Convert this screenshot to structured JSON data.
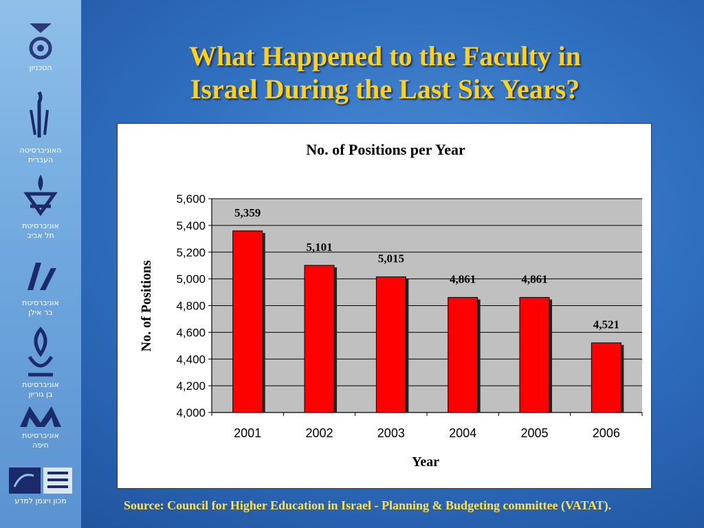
{
  "slide": {
    "title_line1": "What Happened to the Faculty in",
    "title_line2": "Israel During the Last Six Years?",
    "source": "Source: Council for Higher Education in Israel - Planning & Budgeting committee (VATAT)."
  },
  "sidebar": {
    "logos": [
      {
        "icon": "technion-icon",
        "label_lines": [
          "הטכניון"
        ]
      },
      {
        "icon": "hebrew-university-icon",
        "label_lines": [
          "האוניברסיטה",
          "העברית"
        ]
      },
      {
        "icon": "tel-aviv-university-icon",
        "label_lines": [
          "אוניברסיטת",
          "תל אביב"
        ]
      },
      {
        "icon": "bar-ilan-university-icon",
        "label_lines": [
          "אוניברסיטת",
          "בר אילן"
        ]
      },
      {
        "icon": "ben-gurion-university-icon",
        "label_lines": [
          "אוניברסיטת",
          "בן גוריון"
        ]
      },
      {
        "icon": "haifa-university-icon",
        "label_lines": [
          "אוניברסיטת",
          "חיפה"
        ]
      },
      {
        "icon": "weizmann-institute-icon",
        "label_lines": [
          "מכון ויצמן למדע"
        ]
      }
    ]
  },
  "chart_data": {
    "type": "bar",
    "title": "No. of Positions per Year",
    "xlabel": "Year",
    "ylabel": "No. of Positions",
    "categories": [
      "2001",
      "2002",
      "2003",
      "2004",
      "2005",
      "2006"
    ],
    "values": [
      5359,
      5101,
      5015,
      4861,
      4861,
      4521
    ],
    "data_labels": [
      "5,359",
      "5,101",
      "5,015",
      "4,861",
      "4,861",
      "4,521"
    ],
    "ylim": [
      4000,
      5600
    ],
    "yticks": [
      4000,
      4200,
      4400,
      4600,
      4800,
      5000,
      5200,
      5400,
      5600
    ],
    "ytick_labels": [
      "4,000",
      "4,200",
      "4,400",
      "4,600",
      "4,800",
      "5,000",
      "5,200",
      "5,400",
      "5,600"
    ],
    "grid": true,
    "colors": {
      "bar": "#ff0000",
      "plot_bg": "#c0c0c0",
      "bar_shadow": "#222222"
    }
  }
}
